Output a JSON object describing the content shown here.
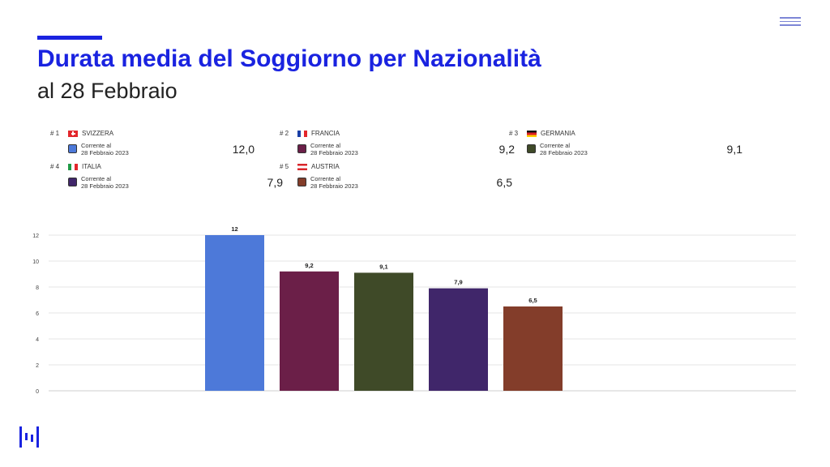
{
  "header": {
    "title": "Durata media del Soggiorno per Nazionalità",
    "subtitle": "al 28 Febbraio"
  },
  "legend": [
    {
      "rank": "# 1",
      "country": "SVIZZERA",
      "flag": "switzerland-flag-icon",
      "caption_line1": "Corrente al",
      "caption_line2": "28 Febbraio 2023",
      "value": "12,0",
      "color": "#4d79d9"
    },
    {
      "rank": "# 2",
      "country": "FRANCIA",
      "flag": "france-flag-icon",
      "caption_line1": "Corrente al",
      "caption_line2": "28 Febbraio 2023",
      "value": "9,2",
      "color": "#6b1f48"
    },
    {
      "rank": "# 3",
      "country": "GERMANIA",
      "flag": "germany-flag-icon",
      "caption_line1": "Corrente al",
      "caption_line2": "28 Febbraio 2023",
      "value": "9,1",
      "color": "#3f4a28"
    },
    {
      "rank": "# 4",
      "country": "ITALIA",
      "flag": "italy-flag-icon",
      "caption_line1": "Corrente al",
      "caption_line2": "28 Febbraio 2023",
      "value": "7,9",
      "color": "#40266a"
    },
    {
      "rank": "# 5",
      "country": "AUSTRIA",
      "flag": "austria-flag-icon",
      "caption_line1": "Corrente al",
      "caption_line2": "28 Febbraio 2023",
      "value": "6,5",
      "color": "#833d2a"
    }
  ],
  "chart_data": {
    "type": "bar",
    "categories": [
      "SVIZZERA",
      "FRANCIA",
      "GERMANIA",
      "ITALIA",
      "AUSTRIA"
    ],
    "values": [
      12,
      9.2,
      9.1,
      7.9,
      6.5
    ],
    "data_labels": [
      "12",
      "9,2",
      "9,1",
      "7,9",
      "6,5"
    ],
    "colors": [
      "#4d79d9",
      "#6b1f48",
      "#3f4a28",
      "#40266a",
      "#833d2a"
    ],
    "title": "",
    "xlabel": "",
    "ylabel": "",
    "ylim": [
      0,
      12
    ],
    "yticks": [
      0,
      2,
      4,
      6,
      8,
      10,
      12
    ],
    "grid": true,
    "x_tick_labels_shown": false
  },
  "colors": {
    "accent": "#1a23e0",
    "grid": "#e6e6e6"
  }
}
